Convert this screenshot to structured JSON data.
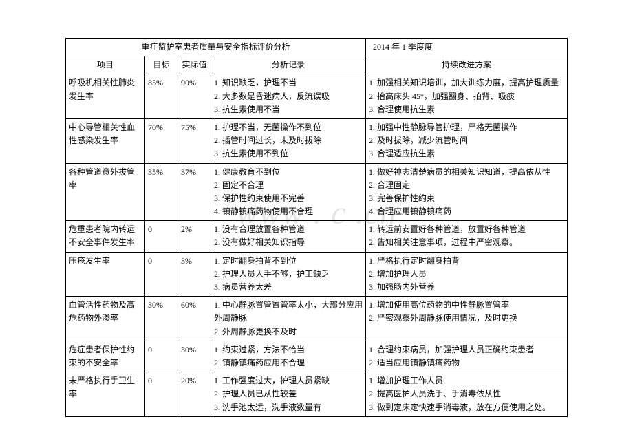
{
  "title_left": "重症监护室患者质量与安全指标评价分析",
  "title_right": "2014 年 1 季度度",
  "headers": {
    "item": "项目",
    "target": "目标",
    "actual": "实际值",
    "analysis": "分析记录",
    "improve": "持续改进方案"
  },
  "watermark": "www . c .cn",
  "rows": [
    {
      "item": "呼吸机相关性肺炎发生率",
      "target": "85%",
      "actual": "90%",
      "analysis": [
        "1. 知识缺乏，护理不当",
        "2. 大多数是昏迷病人，反流误吸",
        "3. 抗生素使用不当"
      ],
      "improve": [
        "1. 加强相关知识培训，加大训练力度，提高护理质量",
        "2. 抬高床头 45°，加强翻身、拍背、吸痰",
        "3. 合理使用抗生素"
      ]
    },
    {
      "item": "中心导管相关性血性感染发生率",
      "target": "70%",
      "actual": "75%",
      "analysis": [
        "1. 护理不当，无菌操作不到位",
        "2. 插管时间过长，未及时拔除",
        "3. 抗生素使用不到位"
      ],
      "improve": [
        "1. 加强中性静脉导管护理，严格无菌操作",
        "2. 及时拔除，减少流管时间",
        "3. 合理适应抗生素"
      ]
    },
    {
      "item": "各种管道意外拔管率",
      "target": "35%",
      "actual": "37%",
      "analysis": [
        "1. 健康教育不到位",
        "2. 固定不合理",
        "3. 保护性约束使用不完善",
        "4. 镇静镇痛药物使用不合理"
      ],
      "improve": [
        "1. 做好神志清楚病员的相关知识知道，提高依从性",
        "2. 合理固定",
        "3. 完善保护性约束",
        "4. 合理应用镇静镇痛药"
      ]
    },
    {
      "item": "危重患者院内转运不安全事件发生率",
      "target": "0",
      "actual": "2%",
      "analysis": [
        "1. 没有合理放置各种管道",
        "2. 没有做好相关知识指导"
      ],
      "improve": [
        "1. 转运前安置好各种管道，放置好各种管道",
        "2. 告知相关注意事项，过程中严密观察。"
      ]
    },
    {
      "item": "压疮发生率",
      "target": "0",
      "actual": "3%",
      "analysis": [
        "1. 定时翻身拍背不到位",
        "2. 护理人员人手不够，护工缺乏",
        "3. 病员营养太差"
      ],
      "improve": [
        "1. 严格执行定时翻身拍背",
        "2. 增加护理人员",
        "3. 加强肠内外营养"
      ]
    },
    {
      "item": "血管活性药物及高危药物外渗率",
      "target": "30%",
      "actual": "60%",
      "analysis": [
        "1. 中心静脉置管置管率太小，大部分应用外周静脉",
        "2. 外周静脉更换不及时"
      ],
      "improve": [
        "1. 增加使用高位药物的中性静脉置管率",
        "2. 严密观察外周静脉使用情况，及时更换"
      ]
    },
    {
      "item": "危症患者保护性约束的不安全率",
      "target": "0",
      "actual": "30%",
      "analysis": [
        "1. 约束过紧，方法不恰当",
        "2. 镇静镇痛药应用不合理"
      ],
      "improve": [
        "1. 合理约束病员，加强护理人员正确约束患者",
        "2. 适当应用镇静镇痛药物"
      ]
    },
    {
      "item": "未严格执行手卫生率",
      "target": "0",
      "actual": "20%",
      "analysis": [
        "1. 工作强度过大，护理人员紧缺",
        "2. 护理人员已从性较差",
        "3. 洗手池太远，洗手液数量有"
      ],
      "improve": [
        "1. 增加护理工作人员",
        "2. 提高医护人员洗手、手消毒依从性",
        "3. 做到定床定快速手消毒液，放在方便使用之处。"
      ]
    }
  ]
}
